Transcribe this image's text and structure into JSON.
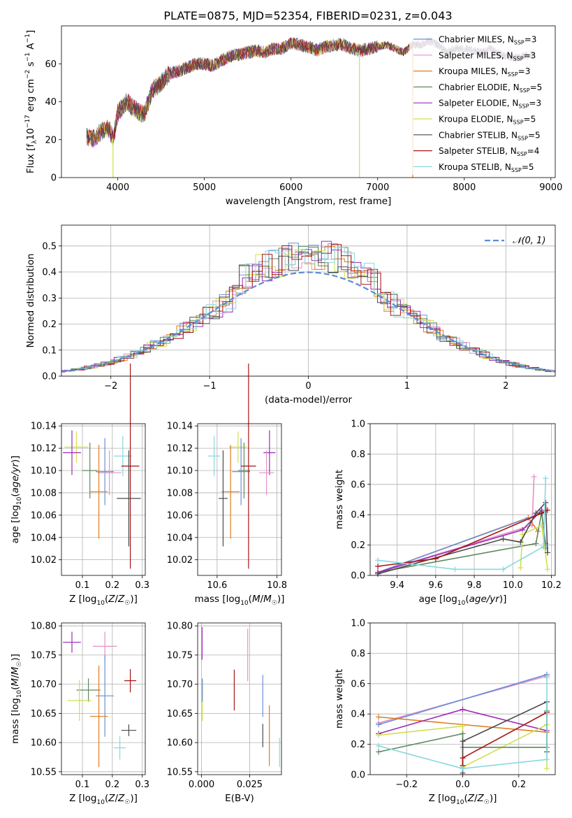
{
  "figure": {
    "title": "PLATE=0875, MJD=52354, FIBERID=0231, z=0.043"
  },
  "legend_colors": [
    "#6a8fd8",
    "#e391c8",
    "#e07d1e",
    "#5d8a5d",
    "#9c2ab4",
    "#cfe050",
    "#4a4a4a",
    "#a81414",
    "#88d8e0"
  ],
  "chart_data": [
    {
      "id": "spectrum",
      "type": "line",
      "title": "PLATE=0875, MJD=52354, FIBERID=0231, z=0.043",
      "xlabel": "wavelength [Angstrom, rest frame]",
      "ylabel": "Flux [f_λ10^-17 erg cm^-2 s^-1 A^-1]",
      "xlim": [
        3350,
        9050
      ],
      "ylim": [
        0,
        80
      ],
      "xticks": [
        4000,
        5000,
        6000,
        7000,
        8000,
        9000
      ],
      "yticks": [
        0,
        20,
        40,
        60
      ],
      "grid": false,
      "legend_position": "top-right",
      "envelope": {
        "x": [
          3640,
          3700,
          3800,
          3900,
          3950,
          4000,
          4100,
          4200,
          4300,
          4400,
          4500,
          4600,
          4700,
          4800,
          4900,
          5000,
          5100,
          5200,
          5300,
          5400,
          5500,
          5600,
          5700,
          5800,
          5900,
          6000,
          6100,
          6200,
          6300,
          6400,
          6500,
          6600,
          6700,
          6800,
          6900,
          7000,
          7100,
          7200,
          7300,
          7400,
          7500,
          7600,
          7700,
          7800,
          7900,
          8000,
          8100,
          8200,
          8300,
          8400,
          8500,
          8600,
          8700,
          8800
        ],
        "y": [
          22,
          20,
          24,
          26,
          20,
          34,
          40,
          36,
          33,
          46,
          50,
          55,
          56,
          58,
          60,
          60,
          59,
          62,
          64,
          65,
          66,
          67,
          66,
          68,
          68,
          71,
          70,
          69,
          67,
          69,
          70,
          70,
          68,
          67,
          68,
          69,
          70,
          68,
          66,
          70,
          70,
          72,
          70,
          66,
          68,
          68,
          67,
          66,
          68,
          65,
          64,
          63,
          64,
          65
        ]
      },
      "series": [
        {
          "name": "Chabrier MILES, N_SSP=3",
          "color": "#6a8fd8"
        },
        {
          "name": "Salpeter MILES, N_SSP=3",
          "color": "#e391c8"
        },
        {
          "name": "Kroupa MILES, N_SSP=3",
          "color": "#e07d1e"
        },
        {
          "name": "Chabrier ELODIE, N_SSP=5",
          "color": "#5d8a5d"
        },
        {
          "name": "Salpeter ELODIE, N_SSP=3",
          "color": "#9c2ab4"
        },
        {
          "name": "Kroupa ELODIE, N_SSP=5",
          "color": "#cfe050"
        },
        {
          "name": "Chabrier STELIB, N_SSP=5",
          "color": "#4a4a4a"
        },
        {
          "name": "Salpeter STELIB, N_SSP=4",
          "color": "#a81414"
        },
        {
          "name": "Kroupa STELIB, N_SSP=5",
          "color": "#88d8e0"
        }
      ],
      "legend_display": [
        "Chabrier MILES, N",
        "Salpeter MILES, N",
        "Kroupa MILES, N",
        "Chabrier ELODIE, N",
        "Salpeter ELODIE, N",
        "Kroupa ELODIE, N",
        "Chabrier STELIB, N",
        "Salpeter STELIB, N",
        "Kroupa STELIB, N"
      ],
      "legend_n": [
        "3",
        "3",
        "3",
        "5",
        "3",
        "5",
        "5",
        "4",
        "5"
      ],
      "legend_sub": "SSP",
      "drops": [
        {
          "x": 6790,
          "color": "#cfe050"
        },
        {
          "x": 7405,
          "color": "#e07d1e"
        },
        {
          "x": 3945,
          "color": "#cfe050"
        }
      ]
    },
    {
      "id": "residuals",
      "type": "histogram",
      "xlabel": "(data-model)/error",
      "ylabel": "Normed distribution",
      "xlim": [
        -2.5,
        2.5
      ],
      "ylim": [
        0,
        0.58
      ],
      "xticks": [
        -2,
        -1,
        0,
        1,
        2
      ],
      "yticks": [
        0.0,
        0.1,
        0.2,
        0.3,
        0.4,
        0.5
      ],
      "grid": true,
      "legend_position": "top-right",
      "reference": {
        "name": "𝒩(0, 1)",
        "color": "#5b8bd9",
        "mean": 0,
        "sigma": 1
      },
      "bin_width": 0.1
    },
    {
      "id": "age_vs_Z",
      "type": "scatter",
      "xlabel": "Z [log10(Z/Z⊙)]",
      "ylabel": "age [log10(age/yr)]",
      "xlim": [
        0.03,
        0.31
      ],
      "ylim": [
        10.006,
        10.142
      ],
      "xticks": [
        0.1,
        0.2,
        0.3
      ],
      "yticks": [
        10.02,
        10.04,
        10.06,
        10.08,
        10.1,
        10.12,
        10.14
      ],
      "grid": true,
      "points": [
        {
          "color": "#cfe050",
          "x": 0.08,
          "y": 10.121,
          "xerr": 0.04,
          "yerr": 0.014
        },
        {
          "color": "#9c2ab4",
          "x": 0.065,
          "y": 10.116,
          "xerr": 0.03,
          "yerr": 0.02
        },
        {
          "color": "#5d8a5d",
          "x": 0.125,
          "y": 10.1,
          "xerr": 0.025,
          "yerr": 0.025
        },
        {
          "color": "#6a8fd8",
          "x": 0.175,
          "y": 10.099,
          "xerr": 0.03,
          "yerr": 0.03
        },
        {
          "color": "#e391c8",
          "x": 0.19,
          "y": 10.098,
          "xerr": 0.04,
          "yerr": 0.02
        },
        {
          "color": "#e07d1e",
          "x": 0.155,
          "y": 10.081,
          "xerr": 0.03,
          "yerr": 0.042
        },
        {
          "color": "#88d8e0",
          "x": 0.235,
          "y": 10.113,
          "xerr": 0.03,
          "yerr": 0.018
        },
        {
          "color": "#a81414",
          "x": 0.26,
          "y": 10.104,
          "xerr": 0.03,
          "yerr": 0.092
        },
        {
          "color": "#4a4a4a",
          "x": 0.255,
          "y": 10.075,
          "xerr": 0.04,
          "yerr": 0.043
        }
      ]
    },
    {
      "id": "age_vs_mass",
      "type": "scatter",
      "xlabel": "mass [log10(M/M⊙)]",
      "ylabel": "",
      "xlim": [
        10.535,
        10.815
      ],
      "ylim": [
        10.006,
        10.142
      ],
      "xticks": [
        10.6,
        10.8
      ],
      "yticks": [
        10.02,
        10.04,
        10.06,
        10.08,
        10.1,
        10.12,
        10.14
      ],
      "grid": true,
      "points": [
        {
          "color": "#cfe050",
          "x": 10.67,
          "y": 10.121,
          "xerr": 0.03,
          "yerr": 0.014
        },
        {
          "color": "#9c2ab4",
          "x": 10.775,
          "y": 10.116,
          "xerr": 0.02,
          "yerr": 0.02
        },
        {
          "color": "#5d8a5d",
          "x": 10.69,
          "y": 10.1,
          "xerr": 0.02,
          "yerr": 0.025
        },
        {
          "color": "#6a8fd8",
          "x": 10.68,
          "y": 10.099,
          "xerr": 0.03,
          "yerr": 0.03
        },
        {
          "color": "#e391c8",
          "x": 10.765,
          "y": 10.098,
          "xerr": 0.025,
          "yerr": 0.02
        },
        {
          "color": "#e07d1e",
          "x": 10.645,
          "y": 10.081,
          "xerr": 0.03,
          "yerr": 0.042
        },
        {
          "color": "#88d8e0",
          "x": 10.59,
          "y": 10.113,
          "xerr": 0.02,
          "yerr": 0.018
        },
        {
          "color": "#a81414",
          "x": 10.705,
          "y": 10.104,
          "xerr": 0.025,
          "yerr": 0.092
        },
        {
          "color": "#4a4a4a",
          "x": 10.62,
          "y": 10.075,
          "xerr": 0.015,
          "yerr": 0.043
        }
      ]
    },
    {
      "id": "weight_vs_age",
      "type": "line",
      "xlabel": "age  [log10(age/yr)]",
      "ylabel": "mass weight",
      "xlim": [
        9.26,
        10.22
      ],
      "ylim": [
        0,
        1.0
      ],
      "xticks": [
        9.4,
        9.6,
        9.8,
        10.0,
        10.2
      ],
      "yticks": [
        0.0,
        0.2,
        0.4,
        0.6,
        0.8,
        1.0
      ],
      "grid": true,
      "series": [
        {
          "color": "#e391c8",
          "x": [
            9.3,
            10.1,
            10.11
          ],
          "y": [
            0.02,
            0.33,
            0.65
          ]
        },
        {
          "color": "#e07d1e",
          "x": [
            9.3,
            10.08,
            10.13
          ],
          "y": [
            0.02,
            0.38,
            0.29
          ]
        },
        {
          "color": "#6a8fd8",
          "x": [
            9.3,
            10.15,
            10.17
          ],
          "y": [
            0.02,
            0.41,
            0.21
          ]
        },
        {
          "color": "#5d8a5d",
          "x": [
            9.3,
            10.12,
            10.15,
            10.17
          ],
          "y": [
            0.02,
            0.21,
            0.42,
            0.18
          ]
        },
        {
          "color": "#9c2ab4",
          "x": [
            9.3,
            10.05,
            10.15
          ],
          "y": [
            0.02,
            0.3,
            0.43
          ]
        },
        {
          "color": "#cfe050",
          "x": [
            10.04,
            10.05,
            10.15,
            10.18
          ],
          "y": [
            0.05,
            0.27,
            0.33,
            0.04
          ]
        },
        {
          "color": "#4a4a4a",
          "x": [
            9.3,
            9.95,
            10.04,
            10.12,
            10.17,
            10.18
          ],
          "y": [
            0.01,
            0.24,
            0.22,
            0.41,
            0.48,
            0.15
          ]
        },
        {
          "color": "#a81414",
          "x": [
            9.3,
            9.6,
            10.15,
            10.18
          ],
          "y": [
            0.06,
            0.11,
            0.41,
            0.43
          ]
        },
        {
          "color": "#88d8e0",
          "x": [
            9.3,
            9.7,
            9.95,
            10.16,
            10.17
          ],
          "y": [
            0.1,
            0.04,
            0.04,
            0.19,
            0.64
          ]
        }
      ]
    },
    {
      "id": "mass_vs_Z",
      "type": "scatter",
      "xlabel": "Z [log10(Z/Z⊙)]",
      "ylabel": "mass [log10(M/M⊙)]",
      "xlim": [
        0.03,
        0.31
      ],
      "ylim": [
        10.545,
        10.805
      ],
      "xticks": [
        0.1,
        0.2,
        0.3
      ],
      "yticks": [
        10.55,
        10.6,
        10.65,
        10.7,
        10.75,
        10.8
      ],
      "grid": true,
      "points": [
        {
          "color": "#9c2ab4",
          "x": 0.065,
          "y": 10.772,
          "xerr": 0.03,
          "yerr": 0.018
        },
        {
          "color": "#e391c8",
          "x": 0.175,
          "y": 10.765,
          "xerr": 0.04,
          "yerr": 0.025
        },
        {
          "color": "#5d8a5d",
          "x": 0.12,
          "y": 10.69,
          "xerr": 0.04,
          "yerr": 0.02
        },
        {
          "color": "#cfe050",
          "x": 0.09,
          "y": 10.672,
          "xerr": 0.04,
          "yerr": 0.035
        },
        {
          "color": "#6a8fd8",
          "x": 0.175,
          "y": 10.68,
          "xerr": 0.03,
          "yerr": 0.07
        },
        {
          "color": "#e07d1e",
          "x": 0.155,
          "y": 10.645,
          "xerr": 0.03,
          "yerr": 0.087
        },
        {
          "color": "#a81414",
          "x": 0.26,
          "y": 10.706,
          "xerr": 0.02,
          "yerr": 0.02
        },
        {
          "color": "#4a4a4a",
          "x": 0.255,
          "y": 10.621,
          "xerr": 0.025,
          "yerr": 0.01
        },
        {
          "color": "#88d8e0",
          "x": 0.225,
          "y": 10.591,
          "xerr": 0.02,
          "yerr": 0.02
        }
      ]
    },
    {
      "id": "mass_vs_ebv",
      "type": "scatter",
      "xlabel": "E(B-V)",
      "ylabel": "",
      "xlim": [
        -0.002,
        0.0415
      ],
      "ylim": [
        10.545,
        10.805
      ],
      "xticks": [
        0.0,
        0.025
      ],
      "yticks": [
        10.55,
        10.6,
        10.65,
        10.7,
        10.75,
        10.8
      ],
      "grid": true,
      "points": [
        {
          "color": "#9c2ab4",
          "x": 0.0003,
          "y": 10.77,
          "xerr": 0,
          "yerr": 0.028
        },
        {
          "color": "#cfe050",
          "x": 0.0005,
          "y": 10.672,
          "xerr": 0,
          "yerr": 0.035
        },
        {
          "color": "#6a8fd8",
          "x": 0.0004,
          "y": 10.69,
          "xerr": 0,
          "yerr": 0.02
        },
        {
          "color": "#a81414",
          "x": 0.017,
          "y": 10.69,
          "xerr": 0,
          "yerr": 0.035
        },
        {
          "color": "#e391c8",
          "x": 0.024,
          "y": 10.75,
          "xerr": 0,
          "yerr": 0.045
        },
        {
          "color": "#6a8fd8",
          "x": 0.0318,
          "y": 10.68,
          "xerr": 0,
          "yerr": 0.036
        },
        {
          "color": "#4a4a4a",
          "x": 0.0318,
          "y": 10.612,
          "xerr": 0,
          "yerr": 0.02
        },
        {
          "color": "#e07d1e",
          "x": 0.0352,
          "y": 10.612,
          "xerr": 0,
          "yerr": 0.052
        },
        {
          "color": "#88d8e0",
          "x": 0.0405,
          "y": 10.583,
          "xerr": 0,
          "yerr": 0.025
        }
      ]
    },
    {
      "id": "weight_vs_Z",
      "type": "line",
      "xlabel": "Z [log10(Z/Z⊙)]",
      "ylabel": "mass weight",
      "xlim": [
        -0.33,
        0.33
      ],
      "ylim": [
        0,
        1.0
      ],
      "xticks": [
        -0.2,
        0.0,
        0.2
      ],
      "yticks": [
        0.0,
        0.2,
        0.4,
        0.6,
        0.8,
        1.0
      ],
      "grid": true,
      "series": [
        {
          "color": "#e391c8",
          "x": [
            -0.3,
            0.3
          ],
          "y": [
            0.34,
            0.65
          ]
        },
        {
          "color": "#6a8fd8",
          "x": [
            -0.3,
            0.3
          ],
          "y": [
            0.33,
            0.66
          ]
        },
        {
          "color": "#e07d1e",
          "x": [
            -0.3,
            0.3
          ],
          "y": [
            0.38,
            0.28
          ]
        },
        {
          "color": "#9c2ab4",
          "x": [
            -0.3,
            0.0,
            0.3
          ],
          "y": [
            0.27,
            0.43,
            0.29
          ]
        },
        {
          "color": "#cfe050",
          "x": [
            -0.3,
            0.0,
            0.0,
            0.3,
            0.3
          ],
          "y": [
            0.26,
            0.32,
            0.05,
            0.33,
            0.04
          ]
        },
        {
          "color": "#5d8a5d",
          "x": [
            -0.3,
            0.0,
            0.0,
            0.3,
            0.3
          ],
          "y": [
            0.15,
            0.27,
            0.18,
            0.18,
            0.42
          ]
        },
        {
          "color": "#4a4a4a",
          "x": [
            0.0,
            0.0,
            0.3,
            0.3
          ],
          "y": [
            0.01,
            0.22,
            0.48,
            0.15
          ]
        },
        {
          "color": "#a81414",
          "x": [
            0.0,
            0.0,
            0.3
          ],
          "y": [
            0.06,
            0.11,
            0.41
          ]
        },
        {
          "color": "#88d8e0",
          "x": [
            -0.3,
            0.0,
            0.3,
            0.3
          ],
          "y": [
            0.19,
            0.04,
            0.1,
            0.64
          ]
        }
      ]
    }
  ]
}
